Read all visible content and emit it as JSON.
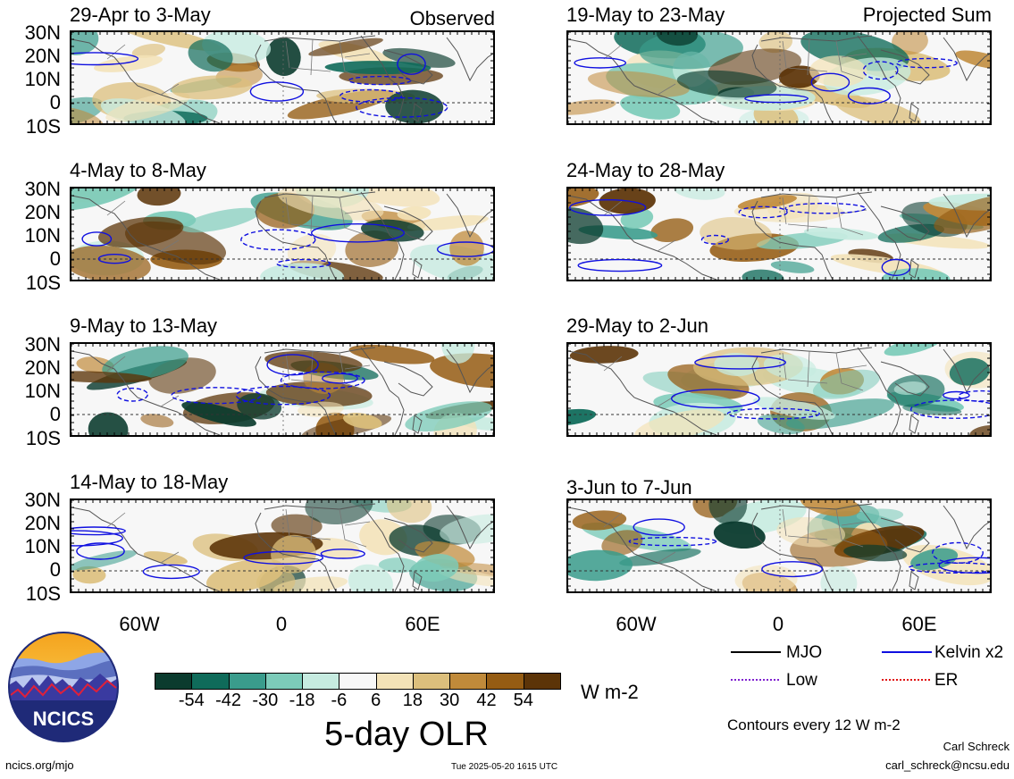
{
  "header": {
    "left_tag": "Observed",
    "right_tag": "Projected Sum"
  },
  "panels_left": [
    {
      "title": "29-Apr to 3-May"
    },
    {
      "title": "4-May to 8-May"
    },
    {
      "title": "9-May to 13-May"
    },
    {
      "title": "14-May to 18-May"
    }
  ],
  "panels_right": [
    {
      "title": "19-May to 23-May"
    },
    {
      "title": "24-May to 28-May"
    },
    {
      "title": "29-May to 2-Jun"
    },
    {
      "title": "3-Jun to 7-Jun"
    }
  ],
  "lat_ticks": [
    "30N",
    "20N",
    "10N",
    "0",
    "10S"
  ],
  "lon_ticks": [
    "60W",
    "0",
    "60E"
  ],
  "colorbar": {
    "title": "5-day OLR",
    "units": "W m-2",
    "labels": [
      "-54",
      "-42",
      "-30",
      "-18",
      "-6",
      "6",
      "18",
      "30",
      "42",
      "54"
    ],
    "colors": [
      "#0b3b2e",
      "#0f6b5a",
      "#3a9c8c",
      "#7ccbb9",
      "#c6ebe0",
      "#f7f7f7",
      "#f3e2b7",
      "#dcbf7c",
      "#c08a3a",
      "#955c13",
      "#5c3408"
    ]
  },
  "legend": {
    "items": [
      {
        "label": "MJO",
        "color": "#000000",
        "style": "solid"
      },
      {
        "label": "Kelvin x2",
        "color": "#1010e0",
        "style": "solid"
      },
      {
        "label": "Low",
        "color": "#8020d0",
        "style": "dotted"
      },
      {
        "label": "ER",
        "color": "#e01010",
        "style": "dotted"
      }
    ],
    "contour_note": "Contours every 12 W m-2"
  },
  "footer": {
    "site": "ncics.org/mjo",
    "timestamp": "Tue 2025-05-20 1615 UTC",
    "author": "Carl Schreck",
    "email": "carl_schreck@ncsu.edu",
    "logo_text": "NCICS"
  }
}
